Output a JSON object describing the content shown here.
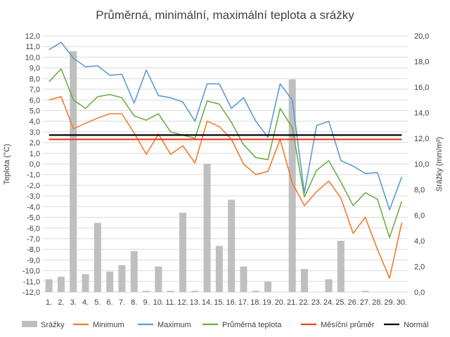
{
  "chart_data": {
    "type": "combo",
    "title": "Průměrná, minimální, maximální teplota a srážky",
    "ylabel_left": "Teplota (°C)",
    "ylabel_right": "Srážky (mm/m²)",
    "ylim_left": [
      -12,
      12
    ],
    "ylim_right": [
      0,
      20
    ],
    "left_ticks": [
      "12,0",
      "11,0",
      "10,0",
      "9,0",
      "8,0",
      "7,0",
      "6,0",
      "5,0",
      "4,0",
      "3,0",
      "2,0",
      "1,0",
      "0,0",
      "-1,0",
      "-2,0",
      "-3,0",
      "-4,0",
      "-5,0",
      "-6,0",
      "-7,0",
      "-8,0",
      "-9,0",
      "-10,0",
      "-11,0",
      "-12,0"
    ],
    "right_ticks": [
      "20,0",
      "18,0",
      "16,0",
      "14,0",
      "12,0",
      "10,0",
      "8,0",
      "6,0",
      "4,0",
      "2,0",
      "0,0"
    ],
    "categories": [
      "1.",
      "2.",
      "3.",
      "4.",
      "5.",
      "6.",
      "7.",
      "8.",
      "9.",
      "10.",
      "11.",
      "12.",
      "13.",
      "14.",
      "15.",
      "16.",
      "17.",
      "18.",
      "19.",
      "20.",
      "21.",
      "22.",
      "23.",
      "24.",
      "25.",
      "26.",
      "27.",
      "28.",
      "29.",
      "30."
    ],
    "grid": true,
    "legend_position": "bottom",
    "bars": {
      "name": "Srážky",
      "axis": "right",
      "color": "#bfbfbf",
      "values": [
        1.0,
        1.2,
        18.8,
        1.4,
        5.4,
        1.6,
        2.1,
        3.2,
        0.1,
        2.0,
        0.1,
        6.2,
        0.1,
        10.0,
        3.6,
        7.2,
        2.0,
        0.1,
        0.8,
        0,
        16.6,
        1.8,
        0,
        1.0,
        4.0,
        0,
        0.1,
        0,
        0,
        0
      ]
    },
    "series": [
      {
        "name": "Minimum",
        "color": "#ed7d31",
        "values": [
          6.0,
          6.3,
          3.3,
          3.8,
          4.3,
          4.7,
          4.7,
          2.9,
          0.9,
          2.8,
          0.9,
          1.7,
          0.1,
          4.0,
          3.5,
          2.3,
          0.0,
          -1.0,
          -0.7,
          2.3,
          -1.8,
          -3.9,
          -2.6,
          -1.6,
          -3.2,
          -6.5,
          -5.0,
          -8.0,
          -10.7,
          -5.5
        ]
      },
      {
        "name": "Maximum",
        "color": "#5b9bd5",
        "values": [
          10.7,
          11.4,
          9.9,
          9.1,
          9.2,
          8.3,
          8.4,
          5.7,
          8.8,
          6.4,
          6.2,
          5.8,
          4.0,
          7.5,
          7.5,
          5.2,
          6.2,
          4.0,
          2.5,
          7.5,
          6.0,
          -2.7,
          3.6,
          4.0,
          0.3,
          -0.2,
          -0.9,
          -0.8,
          -4.3,
          -1.2
        ]
      },
      {
        "name": "Průměrná teplota",
        "color": "#70ad47",
        "values": [
          7.7,
          8.9,
          6.0,
          5.2,
          6.3,
          6.5,
          6.2,
          4.5,
          4.1,
          4.7,
          3.0,
          2.7,
          2.4,
          5.9,
          5.6,
          3.9,
          1.8,
          0.6,
          0.4,
          5.2,
          3.4,
          -3.1,
          -0.6,
          0.3,
          -1.7,
          -3.9,
          -2.7,
          -3.3,
          -6.9,
          -3.5
        ]
      },
      {
        "name": "Měsíční průměr",
        "color": "#e8412a",
        "constant": 2.3
      },
      {
        "name": "Normál",
        "color": "#000000",
        "constant": 2.7
      }
    ]
  }
}
